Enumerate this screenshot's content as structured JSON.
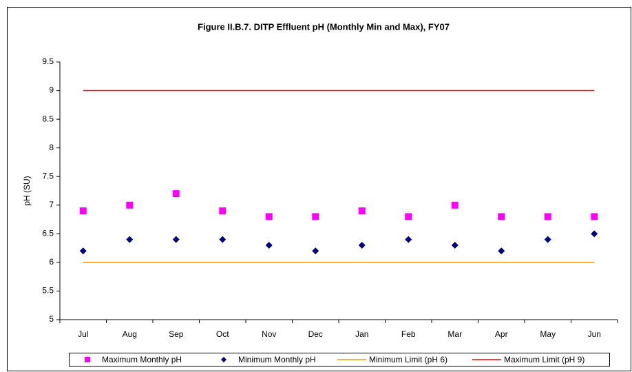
{
  "chart_data": {
    "type": "scatter",
    "title": "Figure II.B.7.  DITP Effluent pH (Monthly Min and Max), FY07",
    "y_label": "pH (SU)",
    "categories": [
      "Jul",
      "Aug",
      "Sep",
      "Oct",
      "Nov",
      "Dec",
      "Jan",
      "Feb",
      "Mar",
      "Apr",
      "May",
      "Jun"
    ],
    "series": [
      {
        "name": "Maximum Monthly pH",
        "color": "#ff00ff",
        "marker": "square",
        "values": [
          6.9,
          7.0,
          7.2,
          6.9,
          6.8,
          6.8,
          6.9,
          6.8,
          7.0,
          6.8,
          6.8,
          6.8
        ]
      },
      {
        "name": "Minimum Monthly pH",
        "color": "#000080",
        "marker": "diamond",
        "values": [
          6.2,
          6.4,
          6.4,
          6.4,
          6.3,
          6.2,
          6.3,
          6.4,
          6.3,
          6.2,
          6.4,
          6.5
        ]
      },
      {
        "name": "Minimum Limit (pH 6)",
        "color": "#ff9900",
        "marker": "line",
        "values": [
          6,
          6,
          6,
          6,
          6,
          6,
          6,
          6,
          6,
          6,
          6,
          6
        ]
      },
      {
        "name": "Maximum Limit (pH 9)",
        "color": "#ff0000",
        "marker": "line",
        "values": [
          9,
          9,
          9,
          9,
          9,
          9,
          9,
          9,
          9,
          9,
          9,
          9
        ]
      }
    ],
    "ylim": [
      5,
      9.5
    ],
    "yticks": [
      5,
      5.5,
      6,
      6.5,
      7,
      7.5,
      8,
      8.5,
      9,
      9.5
    ],
    "grid": false,
    "legend": "bottom"
  }
}
